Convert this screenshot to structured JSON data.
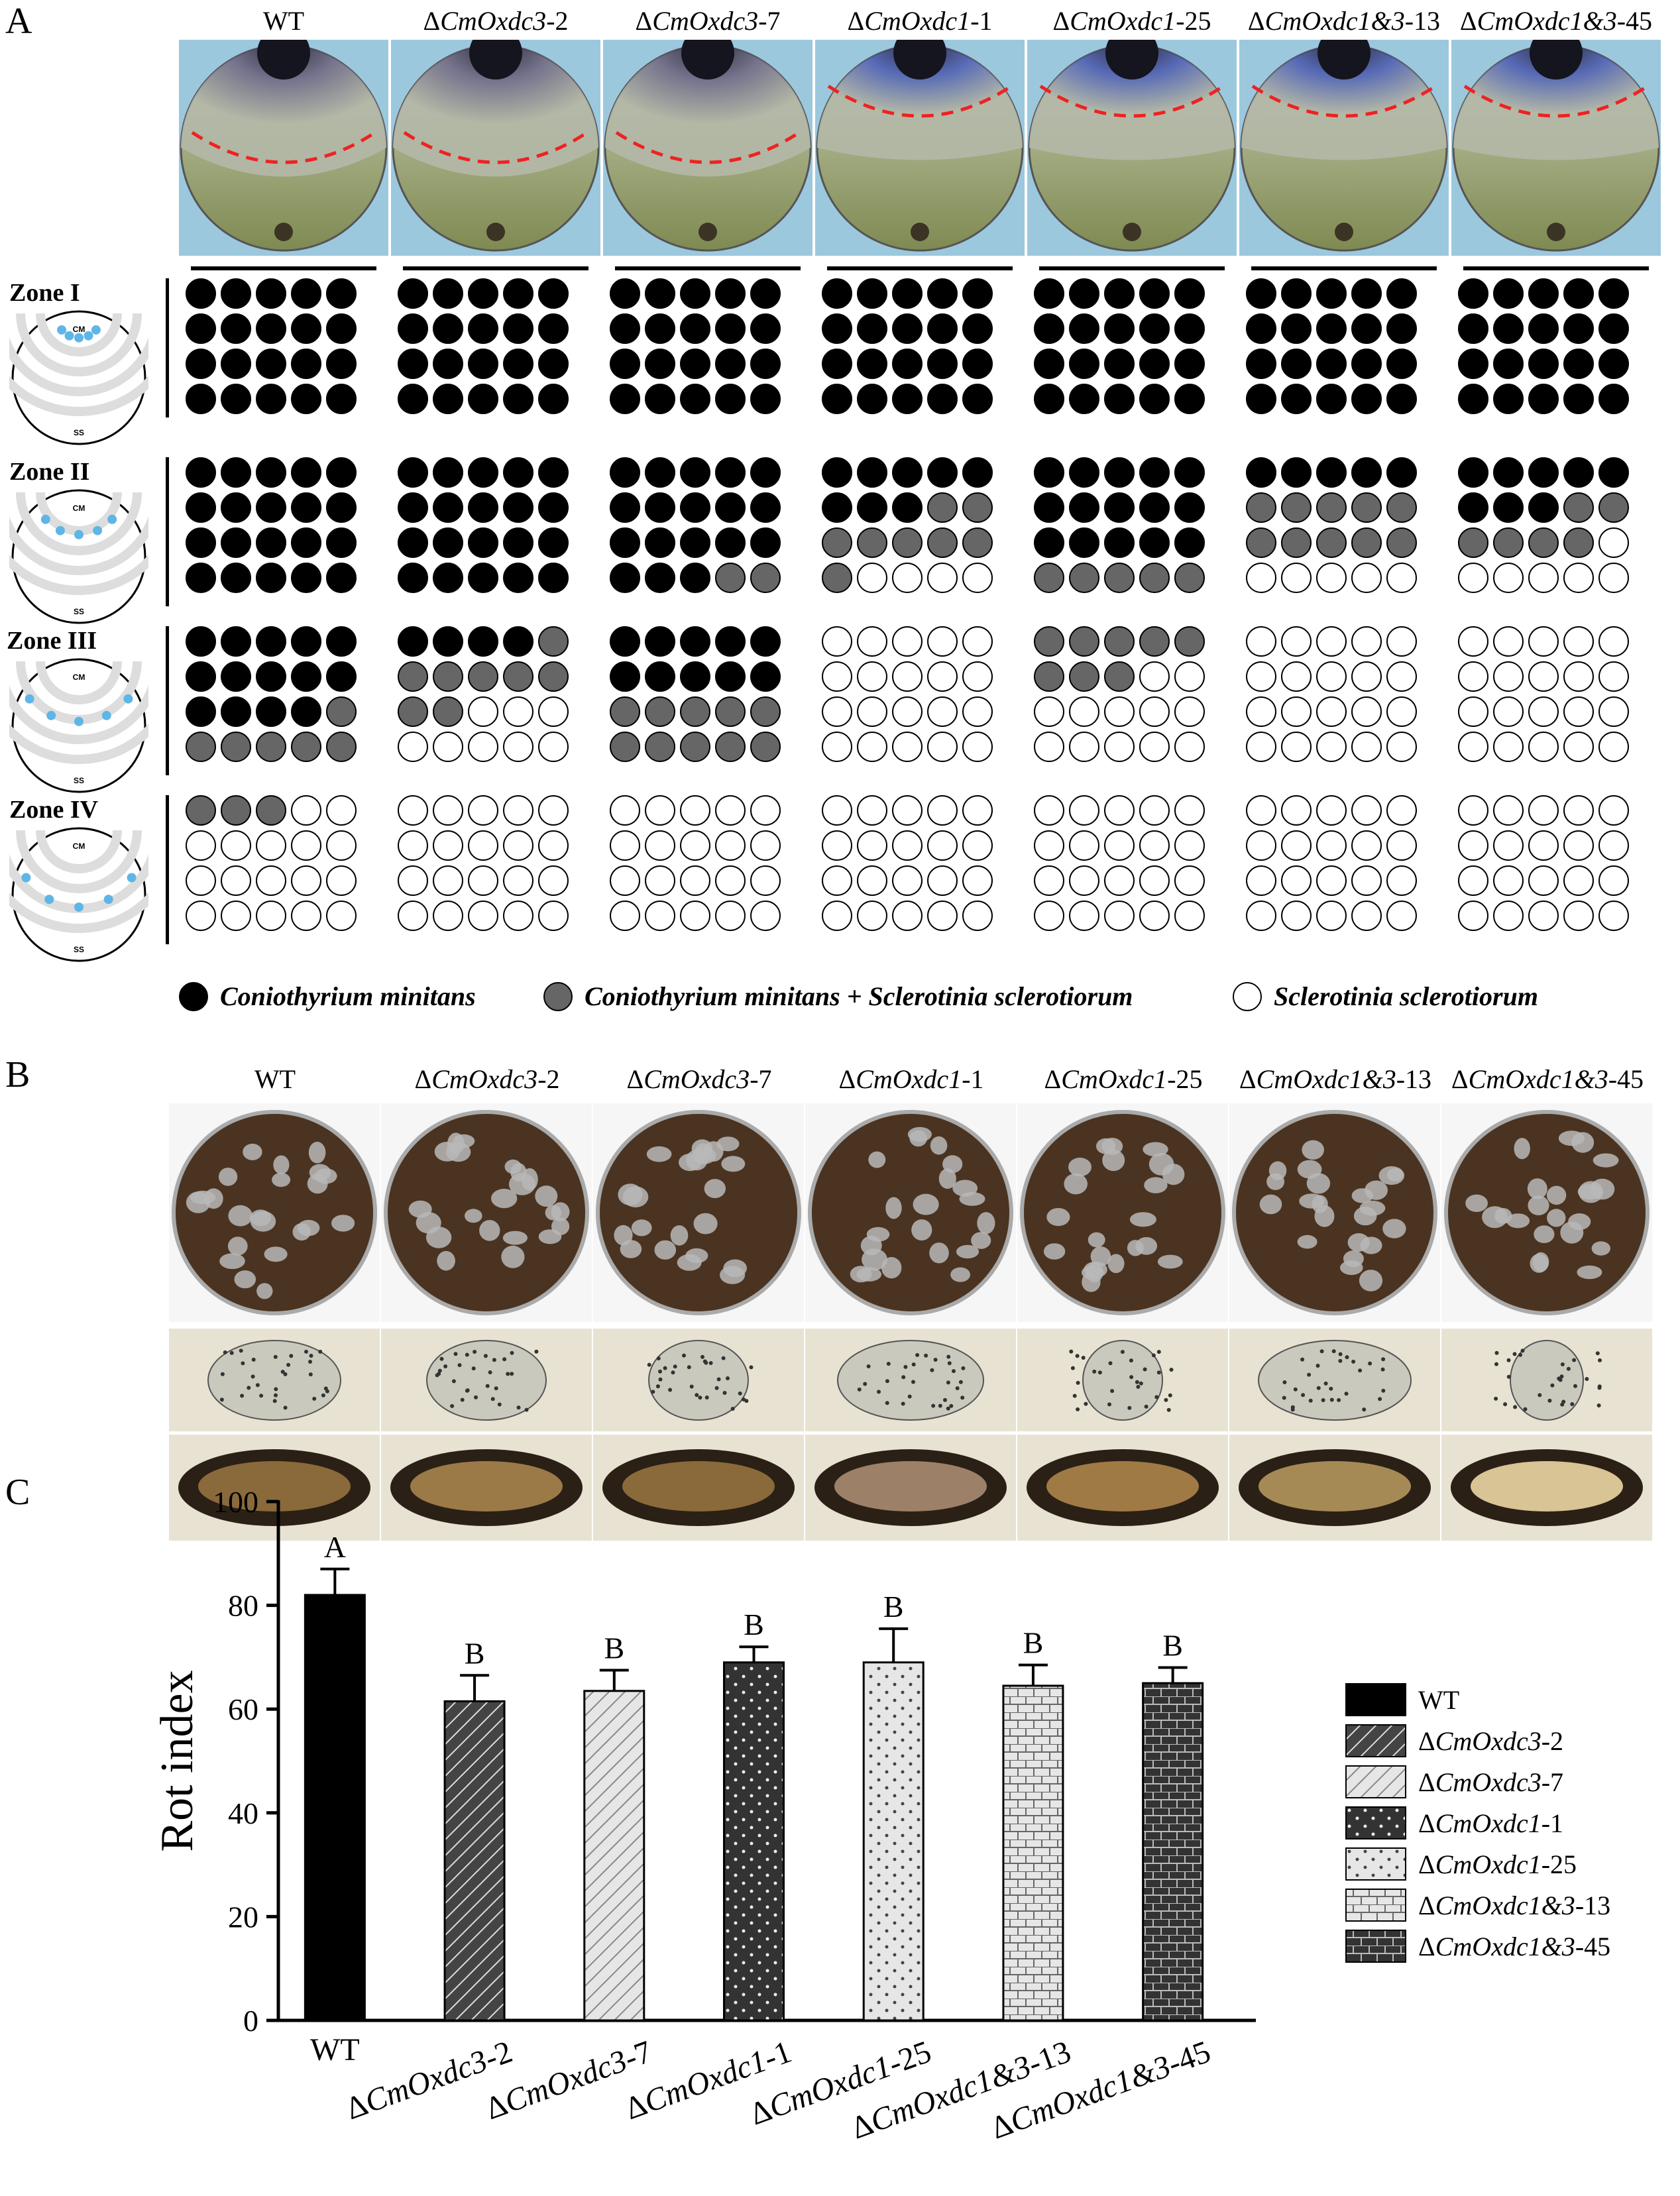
{
  "panel_labels": {
    "a": "A",
    "b": "B",
    "c": "C"
  },
  "strains": [
    {
      "prefix": "",
      "italic": "",
      "suffix": "WT"
    },
    {
      "prefix": "Δ",
      "italic": "CmOxdc3",
      "suffix": "-2"
    },
    {
      "prefix": "Δ",
      "italic": "CmOxdc3",
      "suffix": "-7"
    },
    {
      "prefix": "Δ",
      "italic": "CmOxdc1",
      "suffix": "-1"
    },
    {
      "prefix": "Δ",
      "italic": "CmOxdc1",
      "suffix": "-25"
    },
    {
      "prefix": "Δ",
      "italic": "CmOxdc1&3",
      "suffix": "-13"
    },
    {
      "prefix": "Δ",
      "italic": "CmOxdc1&3",
      "suffix": "-45"
    }
  ],
  "zones": [
    {
      "title": "Zone I",
      "grids": [
        [
          "KKKKK",
          "KKKKK",
          "KKKKK",
          "KKKKK"
        ],
        [
          "KKKKK",
          "KKKKK",
          "KKKKK",
          "KKKKK"
        ],
        [
          "KKKKK",
          "KKKKK",
          "KKKKK",
          "KKKKK"
        ],
        [
          "KKKKK",
          "KKKKK",
          "KKKKK",
          "KKKKK"
        ],
        [
          "KKKKK",
          "KKKKK",
          "KKKKK",
          "KKKKK"
        ],
        [
          "KKKKK",
          "KKKKK",
          "KKKKK",
          "KKKKK"
        ],
        [
          "KKKKK",
          "KKKKK",
          "KKKKK",
          "KKKKK"
        ]
      ]
    },
    {
      "title": "Zone II",
      "grids": [
        [
          "KKKKK",
          "KKKKK",
          "KKKKK",
          "KKKKK"
        ],
        [
          "KKKKK",
          "KKKKK",
          "KKKKK",
          "KKKKK"
        ],
        [
          "KKKKK",
          "KKKKK",
          "KKKKK",
          "KKKGG"
        ],
        [
          "KKKKK",
          "KKKGG",
          "GGGGG",
          "GWWWW"
        ],
        [
          "KKKKK",
          "KKKKK",
          "KKKKK",
          "GGGGG"
        ],
        [
          "KKKKK",
          "GGGGG",
          "GGGGG",
          "WWWWW"
        ],
        [
          "KKKKK",
          "KKKGG",
          "GGGGW",
          "WWWWW"
        ]
      ]
    },
    {
      "title": "Zone III",
      "grids": [
        [
          "KKKKK",
          "KKKKK",
          "KKKKG",
          "GGGGG"
        ],
        [
          "KKKKG",
          "GGGGG",
          "GGWWW",
          "WWWWW"
        ],
        [
          "KKKKK",
          "KKKKK",
          "GGGGG",
          "GGGGG"
        ],
        [
          "WWWWW",
          "WWWWW",
          "WWWWW",
          "WWWWW"
        ],
        [
          "GGGGG",
          "GGGWW",
          "WWWWW",
          "WWWWW"
        ],
        [
          "WWWWW",
          "WWWWW",
          "WWWWW",
          "WWWWW"
        ],
        [
          "WWWWW",
          "WWWWW",
          "WWWWW",
          "WWWWW"
        ]
      ]
    },
    {
      "title": "Zone IV",
      "grids": [
        [
          "GGGWW",
          "WWWWW",
          "WWWWW",
          "WWWWW"
        ],
        [
          "WWWWW",
          "WWWWW",
          "WWWWW",
          "WWWWW"
        ],
        [
          "WWWWW",
          "WWWWW",
          "WWWWW",
          "WWWWW"
        ],
        [
          "WWWWW",
          "WWWWW",
          "WWWWW",
          "WWWWW"
        ],
        [
          "WWWWW",
          "WWWWW",
          "WWWWW",
          "WWWWW"
        ],
        [
          "WWWWW",
          "WWWWW",
          "WWWWW",
          "WWWWW"
        ],
        [
          "WWWWW",
          "WWWWW",
          "WWWWW",
          "WWWWW"
        ]
      ]
    }
  ],
  "zone_icon": {
    "top_label": "CM",
    "bottom_label": "SS"
  },
  "legend_a": [
    {
      "color": "#000000",
      "label": "Coniothyrium minitans"
    },
    {
      "color": "#666666",
      "label": "Coniothyrium minitans + Sclerotinia sclerotiorum"
    },
    {
      "color": "#ffffff",
      "label": "Sclerotinia sclerotiorum"
    }
  ],
  "colors": {
    "K": "#000000",
    "G": "#666666",
    "W": "#ffffff"
  },
  "chart_data": {
    "type": "bar",
    "ylabel": "Rot index",
    "ylim": [
      0,
      100
    ],
    "yticks": [
      0,
      20,
      40,
      60,
      80,
      100
    ],
    "categories": [
      "WT",
      "ΔCmOxdc3-2",
      "ΔCmOxdc3-7",
      "ΔCmOxdc1-1",
      "ΔCmOxdc1-25",
      "ΔCmOxdc1&3-13",
      "ΔCmOxdc1&3-45"
    ],
    "values": [
      82,
      61.5,
      63.5,
      69,
      69,
      64.5,
      65
    ],
    "errors": [
      5,
      5,
      4,
      3,
      6.5,
      4,
      3
    ],
    "significance": [
      "A",
      "B",
      "B",
      "B",
      "B",
      "B",
      "B"
    ],
    "patterns": [
      "solid-black",
      "diag-dark",
      "diag-light",
      "dots-dark",
      "dots-light",
      "brick-light",
      "brick-dark"
    ],
    "legend": [
      {
        "prefix": "",
        "italic": "",
        "suffix": "WT"
      },
      {
        "prefix": "Δ",
        "italic": "CmOxdc3",
        "suffix": "-2"
      },
      {
        "prefix": "Δ",
        "italic": "CmOxdc3",
        "suffix": "-7"
      },
      {
        "prefix": "Δ",
        "italic": "CmOxdc1",
        "suffix": "-1"
      },
      {
        "prefix": "Δ",
        "italic": "CmOxdc1",
        "suffix": "-25"
      },
      {
        "prefix": "Δ",
        "italic": "CmOxdc1&3",
        "suffix": "-13"
      },
      {
        "prefix": "Δ",
        "italic": "CmOxdc1&3",
        "suffix": "-45"
      }
    ],
    "legend_position": "right"
  }
}
